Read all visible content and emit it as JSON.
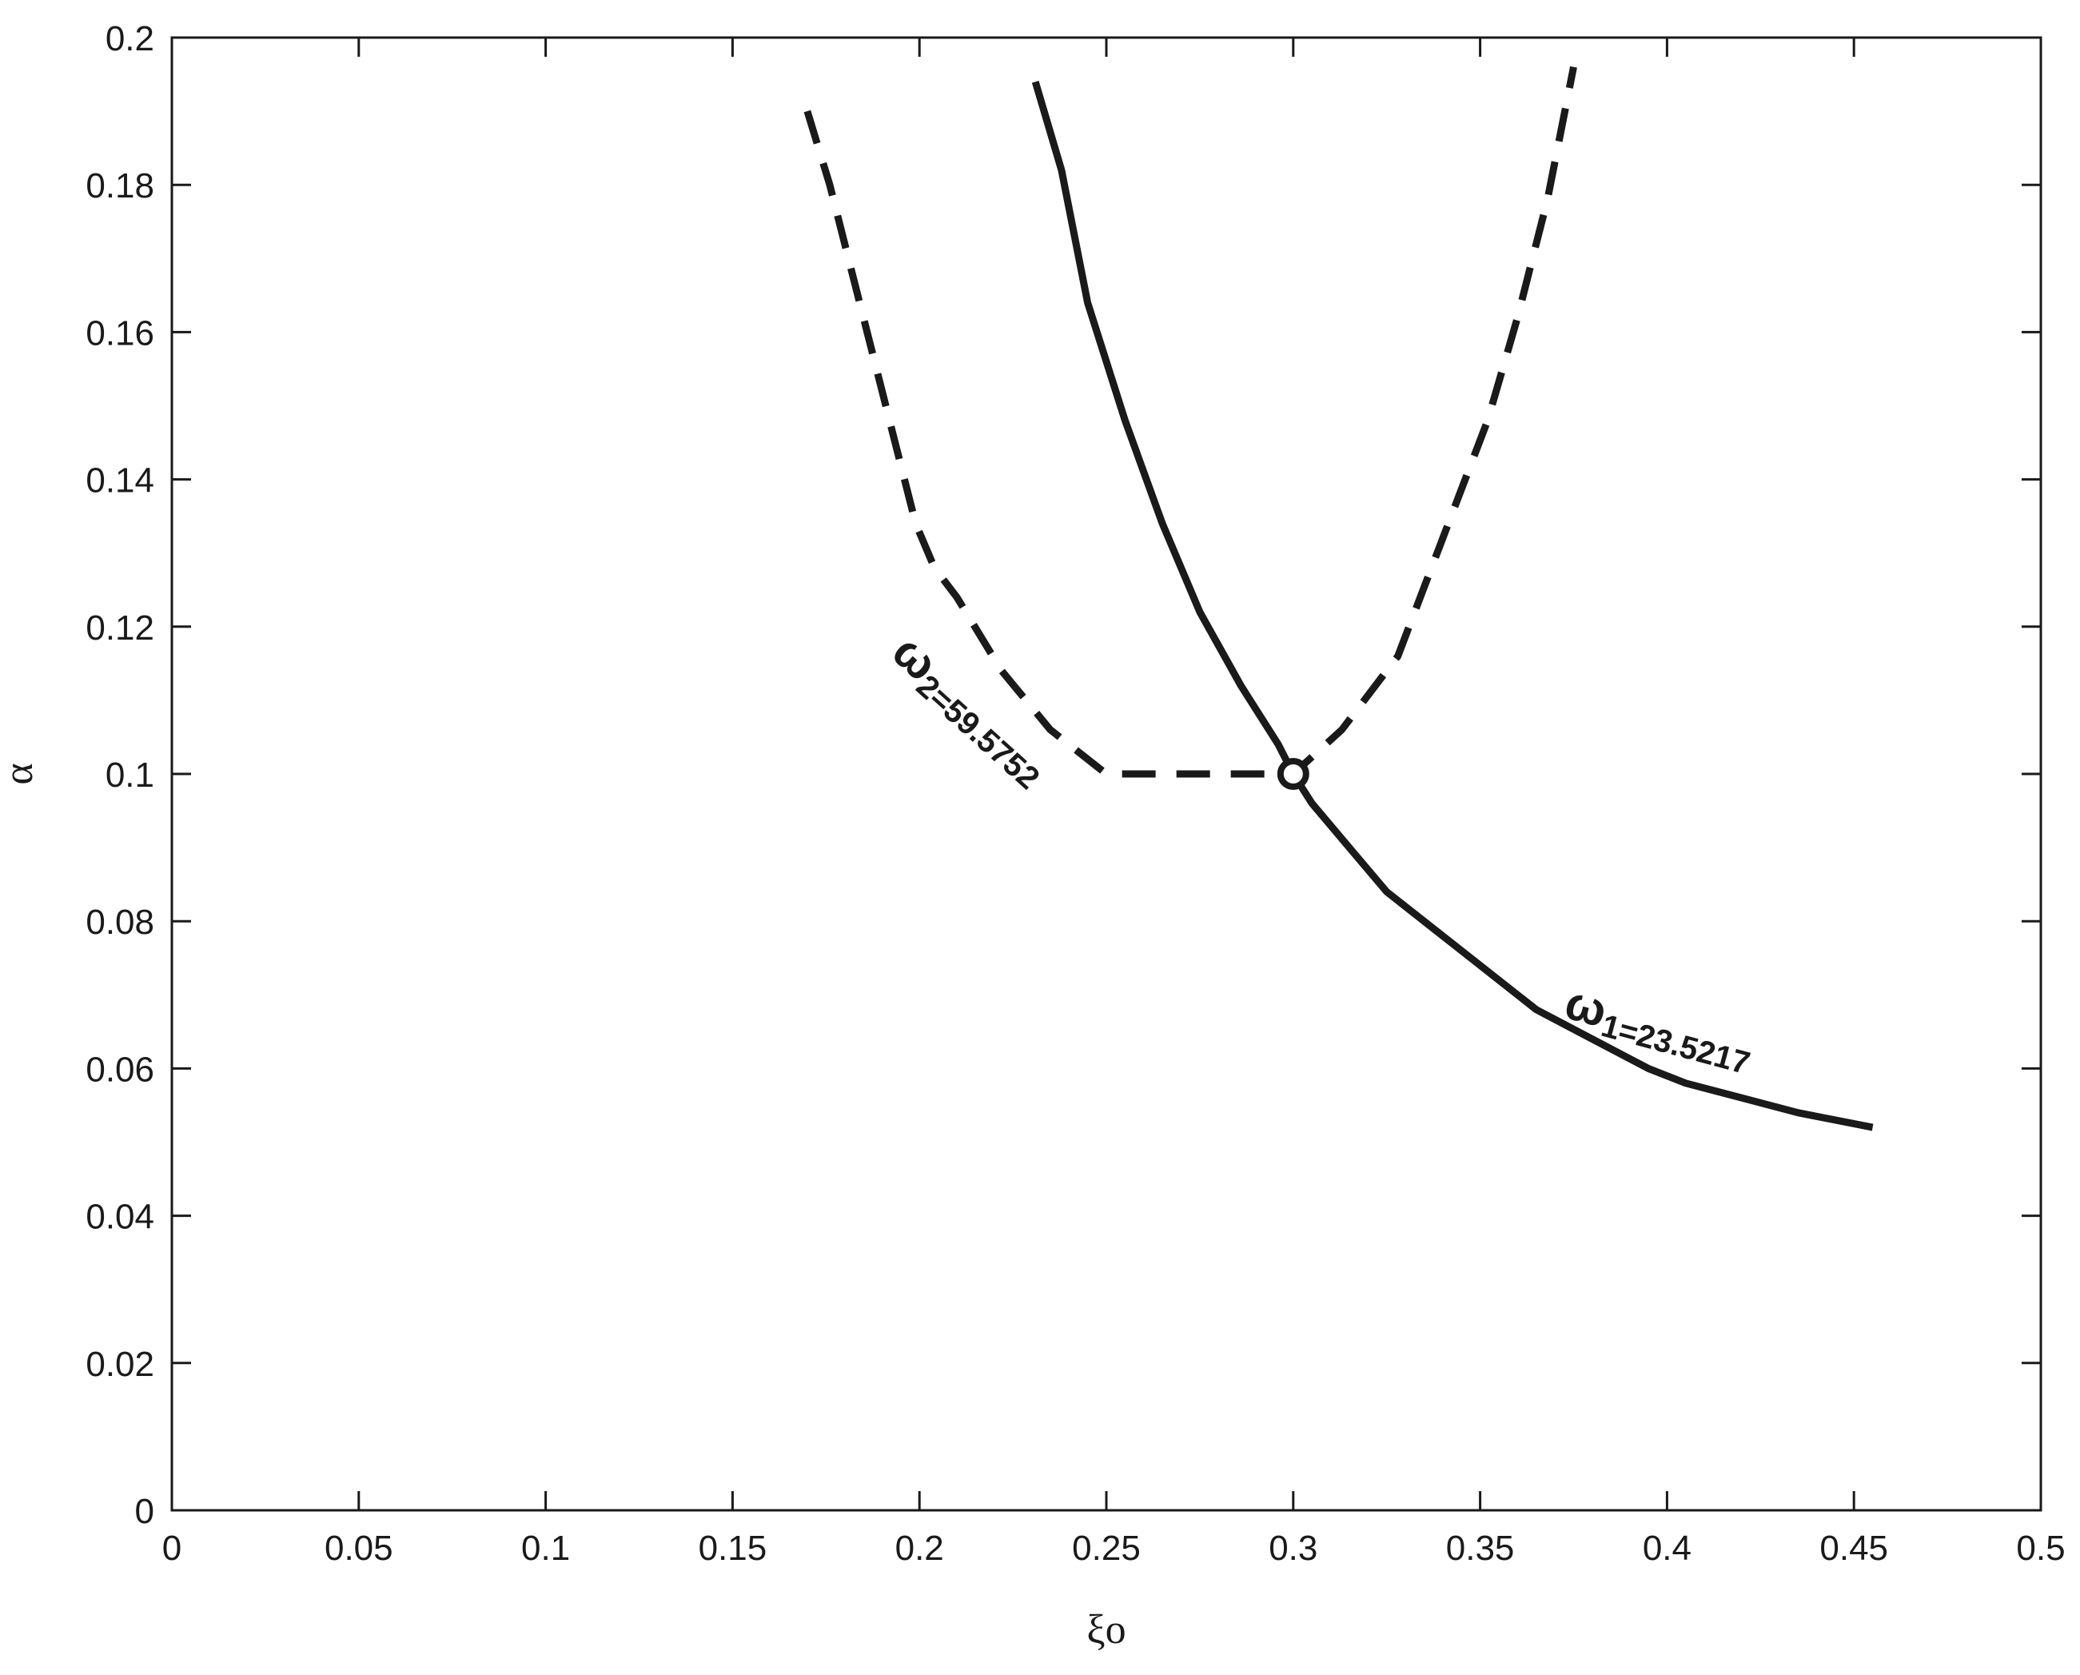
{
  "chart_data": {
    "type": "line",
    "xlabel": "ξo",
    "ylabel": "α",
    "xlim": [
      0,
      0.5
    ],
    "ylim": [
      0,
      0.2
    ],
    "x_ticks": [
      "0",
      "0.05",
      "0.1",
      "0.15",
      "0.2",
      "0.25",
      "0.3",
      "0.35",
      "0.4",
      "0.45",
      "0.5"
    ],
    "y_ticks": [
      "0",
      "0.02",
      "0.04",
      "0.06",
      "0.08",
      "0.1",
      "0.12",
      "0.14",
      "0.16",
      "0.18",
      "0.2"
    ],
    "grid": false,
    "series": [
      {
        "style": "solid",
        "color": "#1a1a1a",
        "points": [
          [
            0.231,
            0.194
          ],
          [
            0.238,
            0.182
          ],
          [
            0.245,
            0.164
          ],
          [
            0.255,
            0.148
          ],
          [
            0.265,
            0.134
          ],
          [
            0.275,
            0.122
          ],
          [
            0.286,
            0.112
          ],
          [
            0.296,
            0.104
          ],
          [
            0.3,
            0.1
          ],
          [
            0.305,
            0.096
          ],
          [
            0.315,
            0.09
          ],
          [
            0.325,
            0.084
          ],
          [
            0.345,
            0.076
          ],
          [
            0.365,
            0.068
          ],
          [
            0.38,
            0.064
          ],
          [
            0.395,
            0.06
          ],
          [
            0.405,
            0.058
          ],
          [
            0.42,
            0.056
          ],
          [
            0.435,
            0.054
          ],
          [
            0.455,
            0.052
          ]
        ]
      },
      {
        "style": "dashed",
        "color": "#1a1a1a",
        "points": [
          [
            0.17,
            0.19
          ],
          [
            0.176,
            0.18
          ],
          [
            0.182,
            0.168
          ],
          [
            0.188,
            0.156
          ],
          [
            0.194,
            0.144
          ],
          [
            0.199,
            0.134
          ],
          [
            0.204,
            0.128
          ],
          [
            0.21,
            0.124
          ],
          [
            0.222,
            0.114
          ],
          [
            0.235,
            0.106
          ],
          [
            0.25,
            0.1
          ],
          [
            0.3,
            0.1
          ],
          [
            0.313,
            0.106
          ],
          [
            0.328,
            0.116
          ],
          [
            0.34,
            0.132
          ],
          [
            0.352,
            0.148
          ],
          [
            0.36,
            0.162
          ],
          [
            0.368,
            0.178
          ],
          [
            0.375,
            0.196
          ]
        ]
      }
    ],
    "marker": {
      "x": 0.3,
      "y": 0.1,
      "shape": "open-circle"
    },
    "annotations": [
      {
        "symbol": "ω",
        "subscript": "1=23.5217",
        "x": 0.372,
        "y": 0.067,
        "angle_deg": 15
      },
      {
        "symbol": "ω",
        "subscript": "2=59.5752",
        "x": 0.192,
        "y": 0.116,
        "angle_deg": 42
      }
    ]
  }
}
